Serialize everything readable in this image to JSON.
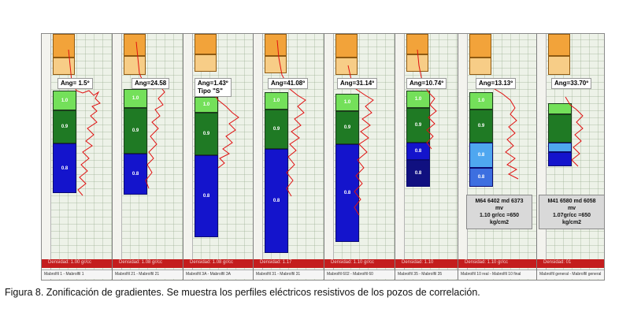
{
  "caption": "Figura 8. Zonificación de gradientes. Se muestra los perfiles eléctricos resistivos de los pozos de correlación.",
  "colors": {
    "density_bar": "#c41d1d",
    "curve": "#e01010",
    "light_green": "#74e05a",
    "dark_green": "#1f7a24",
    "blue": "#1414cc"
  },
  "panels": [
    {
      "ang": "Ang= 1.5º",
      "sub": "",
      "density": "Densidad: 1.00 gr/cc",
      "well": "Mabrolfil 1 - Mabrolfil 1"
    },
    {
      "ang": "Ang=24.58",
      "sub": "",
      "density": "Densidad: 1.08 gr/cc",
      "well": "Mabrolfil 21 - Mabrolfil 21"
    },
    {
      "ang": "Ang=1.43º",
      "sub": "Tipo \"S\"",
      "density": "Densidad: 1.08 gr/cc",
      "well": "Mabrolfil 3A - Mabrolfil 3A"
    },
    {
      "ang": "Ang=41.08º",
      "sub": "",
      "density": "Densidad: 1.17",
      "well": "Mabrolfil 31 - Mabrolfil 31"
    },
    {
      "ang": "Ang=31.14º",
      "sub": "",
      "density": "Densidad: 1.10 gr/cc",
      "well": "Mabrolfil 602 - Mabrolfil 60"
    },
    {
      "ang": "Ang=10.74º",
      "sub": "",
      "density": "Densidad: 1.10",
      "well": "Mabrolfil 35 - Mabrolfil 35"
    },
    {
      "ang": "Ang=13.13º",
      "sub": "",
      "density": "Densidad: 1.10 gr/cc",
      "well": "Mabrolfil 10 real - Mabrolfil 10 final",
      "note": [
        "M64 6402 md 6373",
        "mv",
        "1.10 gr/cc =650",
        "kg/cm2"
      ]
    },
    {
      "ang": "Ang=33.70º",
      "sub": "",
      "density": "Densidad: 01",
      "well": "Mabrolfil general - Mabrolfil general",
      "note": [
        "M41 6580 md 6058",
        "mv",
        "1.07gr/cc =650",
        "kg/cm2"
      ]
    }
  ]
}
